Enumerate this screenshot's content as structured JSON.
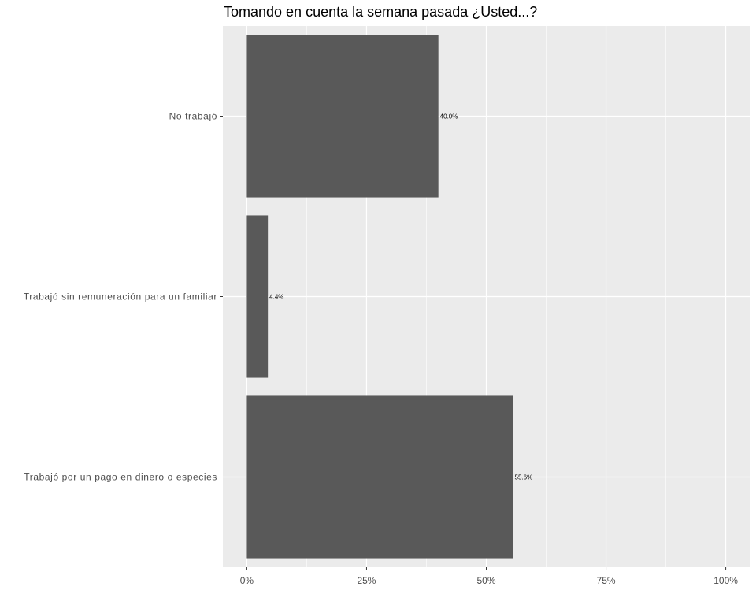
{
  "colors": {
    "panel_background": "#ebebeb",
    "grid_major": "#ffffff",
    "bar_fill": "#595959",
    "axis_text": "#4d4d4d",
    "tick_mark": "#333333"
  },
  "chart_data": {
    "type": "bar",
    "orientation": "horizontal",
    "title": "Tomando en cuenta la semana pasada ¿Usted...?",
    "xlabel": "",
    "ylabel": "",
    "categories": [
      "No trabajó",
      "Trabajó sin remuneración para un familiar",
      "Trabajó por un pago en dinero o especies"
    ],
    "values": [
      40.0,
      4.4,
      55.6
    ],
    "value_labels": [
      "40.0%",
      "4.4%",
      "55.6%"
    ],
    "xlim": [
      -5,
      105
    ],
    "x_ticks": [
      0,
      25,
      50,
      75,
      100
    ],
    "x_tick_labels": [
      "0%",
      "25%",
      "50%",
      "75%",
      "100%"
    ],
    "grid": true,
    "legend": "none"
  }
}
